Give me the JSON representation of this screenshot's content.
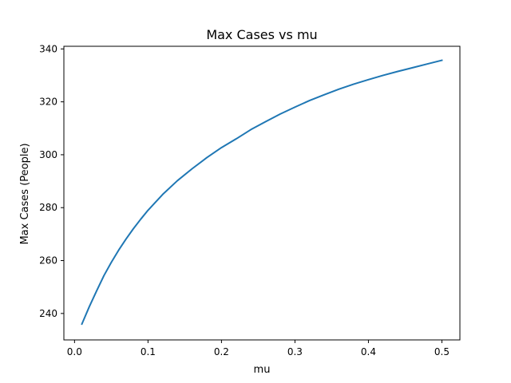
{
  "chart_data": {
    "type": "line",
    "title": "Max Cases vs mu",
    "xlabel": "mu",
    "ylabel": "Max Cases (People)",
    "xlim": [
      -0.0145,
      0.5245
    ],
    "ylim": [
      230.0,
      341.0
    ],
    "x_ticks": [
      0.0,
      0.1,
      0.2,
      0.3,
      0.4,
      0.5
    ],
    "x_tick_labels": [
      "0.0",
      "0.1",
      "0.2",
      "0.3",
      "0.4",
      "0.5"
    ],
    "y_ticks": [
      240,
      260,
      280,
      300,
      320,
      340
    ],
    "y_tick_labels": [
      "240",
      "260",
      "280",
      "300",
      "320",
      "340"
    ],
    "grid": false,
    "series": [
      {
        "color": "#1f77b4",
        "x": [
          0.01,
          0.02,
          0.03,
          0.04,
          0.05,
          0.06,
          0.07,
          0.08,
          0.09,
          0.1,
          0.12,
          0.14,
          0.16,
          0.18,
          0.2,
          0.22,
          0.24,
          0.26,
          0.28,
          0.3,
          0.32,
          0.34,
          0.36,
          0.38,
          0.4,
          0.42,
          0.44,
          0.46,
          0.48,
          0.5
        ],
        "y": [
          236.0,
          242.5,
          248.5,
          254.3,
          259.3,
          263.9,
          268.1,
          272.0,
          275.6,
          279.0,
          285.0,
          290.2,
          294.7,
          298.9,
          302.7,
          306.0,
          309.5,
          312.5,
          315.4,
          318.0,
          320.5,
          322.7,
          324.8,
          326.7,
          328.4,
          330.0,
          331.5,
          332.9,
          334.3,
          335.7
        ]
      }
    ]
  }
}
